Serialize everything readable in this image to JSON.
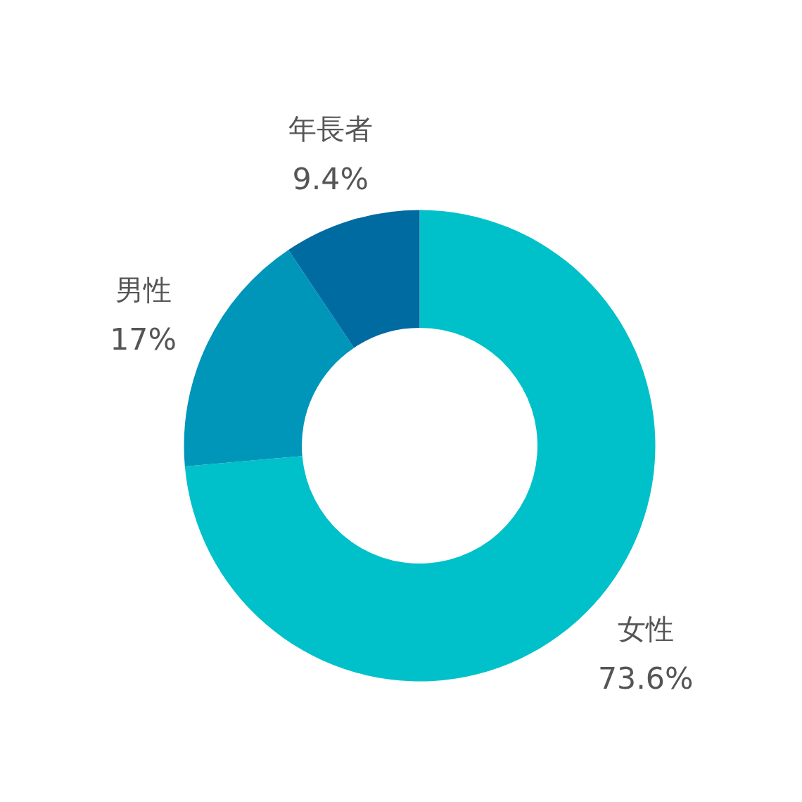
{
  "chart_data": {
    "type": "donut",
    "categories": [
      "女性",
      "男性",
      "年長者"
    ],
    "values": [
      73.6,
      17,
      9.4
    ],
    "colors": [
      "#00c1c9",
      "#0096b9",
      "#006ba1"
    ],
    "value_labels": [
      "73.6%",
      "17%",
      "9.4%"
    ]
  }
}
